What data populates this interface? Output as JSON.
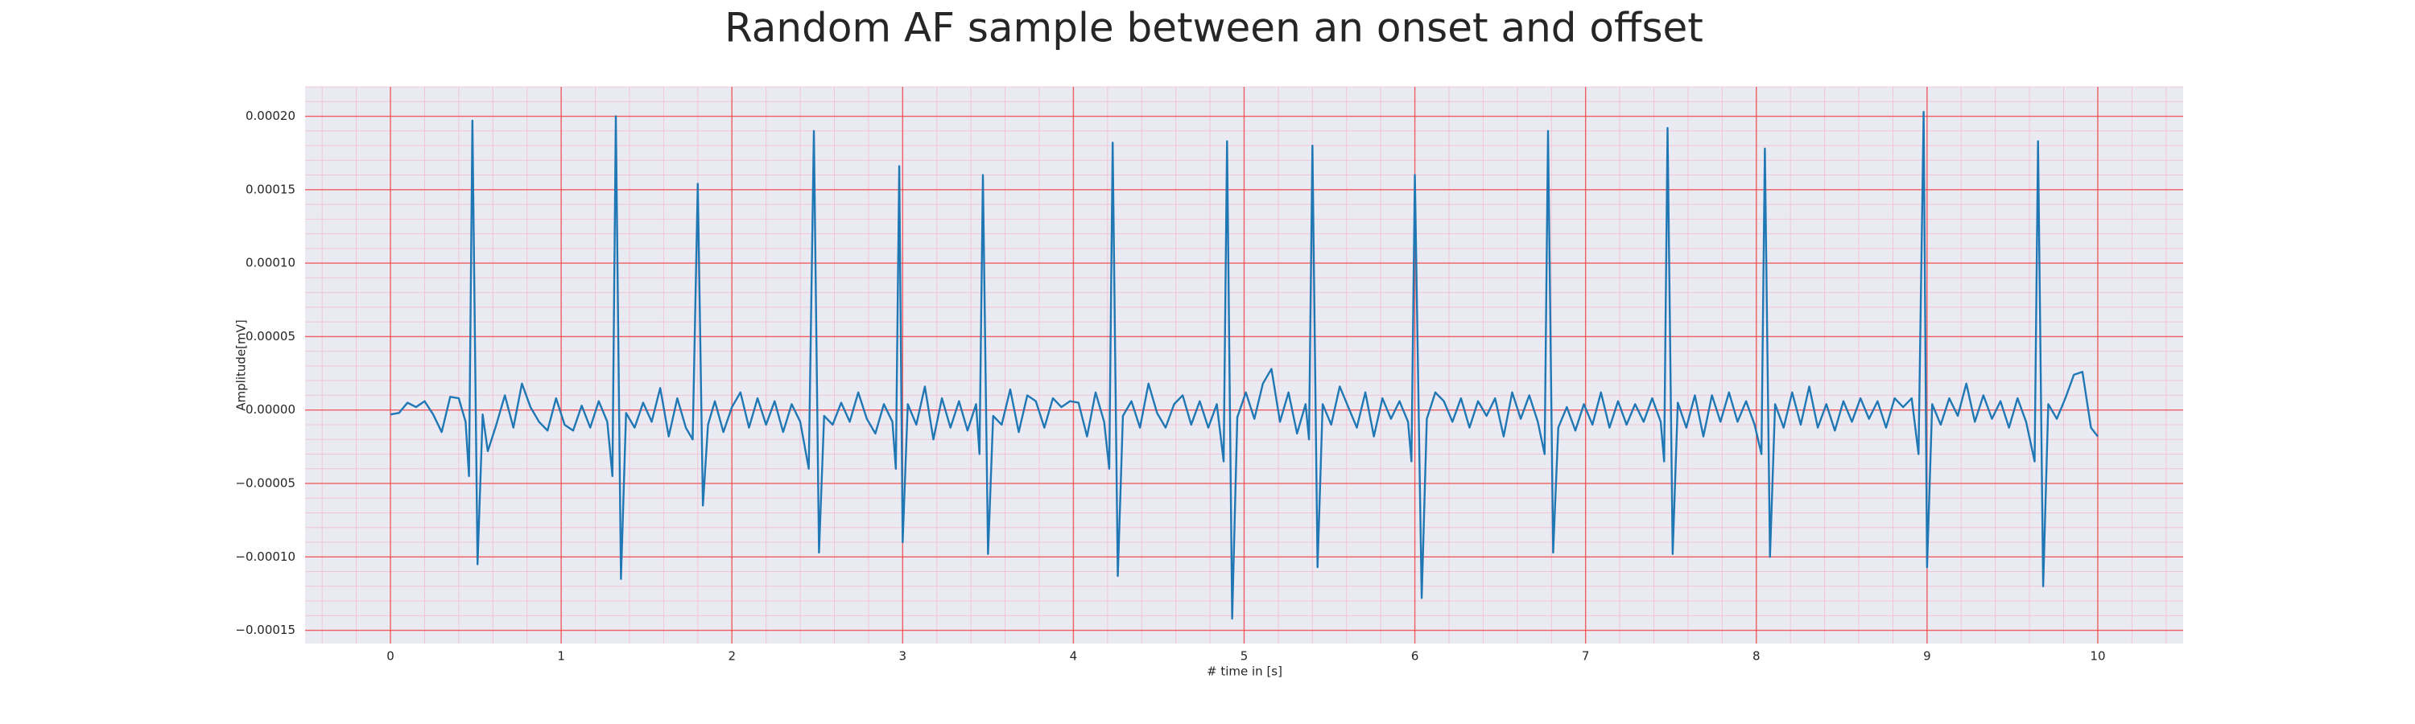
{
  "chart_data": {
    "type": "line",
    "title": "Random AF sample between an onset and offset",
    "xlabel": "# time in [s]",
    "ylabel": "Amplitude[mV]",
    "color": "#1f77b4",
    "grid": true,
    "minor_grid": true,
    "xlim": [
      -0.5,
      10.5
    ],
    "ylim": [
      -0.000159,
      0.00022
    ],
    "xticks": [
      0,
      1,
      2,
      3,
      4,
      5,
      6,
      7,
      8,
      9,
      10
    ],
    "yticks": [
      {
        "value": -0.00015,
        "label": "−0.00015"
      },
      {
        "value": -0.0001,
        "label": "−0.00010"
      },
      {
        "value": -5e-05,
        "label": "−0.00005"
      },
      {
        "value": 0,
        "label": "0.00000"
      },
      {
        "value": 5e-05,
        "label": "0.00005"
      },
      {
        "value": 0.0001,
        "label": "0.00010"
      },
      {
        "value": 0.00015,
        "label": "0.00015"
      },
      {
        "value": 0.0002,
        "label": "0.00020"
      }
    ],
    "x": [
      0.0,
      0.05,
      0.1,
      0.15,
      0.2,
      0.25,
      0.3,
      0.35,
      0.4,
      0.44,
      0.46,
      0.48,
      0.51,
      0.54,
      0.57,
      0.62,
      0.67,
      0.72,
      0.77,
      0.82,
      0.87,
      0.92,
      0.97,
      1.02,
      1.07,
      1.12,
      1.17,
      1.22,
      1.27,
      1.3,
      1.32,
      1.35,
      1.38,
      1.43,
      1.48,
      1.53,
      1.58,
      1.63,
      1.68,
      1.73,
      1.77,
      1.8,
      1.83,
      1.86,
      1.9,
      1.95,
      2.0,
      2.05,
      2.1,
      2.15,
      2.2,
      2.25,
      2.3,
      2.35,
      2.4,
      2.45,
      2.48,
      2.51,
      2.54,
      2.59,
      2.64,
      2.69,
      2.74,
      2.79,
      2.84,
      2.89,
      2.94,
      2.96,
      2.98,
      3.0,
      3.03,
      3.08,
      3.13,
      3.18,
      3.23,
      3.28,
      3.33,
      3.38,
      3.43,
      3.45,
      3.47,
      3.5,
      3.53,
      3.58,
      3.63,
      3.68,
      3.73,
      3.78,
      3.83,
      3.88,
      3.93,
      3.98,
      4.03,
      4.08,
      4.13,
      4.18,
      4.21,
      4.23,
      4.26,
      4.29,
      4.34,
      4.39,
      4.44,
      4.49,
      4.54,
      4.59,
      4.64,
      4.69,
      4.74,
      4.79,
      4.84,
      4.88,
      4.9,
      4.93,
      4.96,
      5.01,
      5.06,
      5.11,
      5.16,
      5.21,
      5.26,
      5.31,
      5.36,
      5.38,
      5.4,
      5.43,
      5.46,
      5.51,
      5.56,
      5.61,
      5.66,
      5.71,
      5.76,
      5.81,
      5.86,
      5.91,
      5.96,
      5.98,
      6.0,
      6.04,
      6.07,
      6.12,
      6.17,
      6.22,
      6.27,
      6.32,
      6.37,
      6.42,
      6.47,
      6.52,
      6.57,
      6.62,
      6.67,
      6.72,
      6.76,
      6.78,
      6.81,
      6.84,
      6.89,
      6.94,
      6.99,
      7.04,
      7.09,
      7.14,
      7.19,
      7.24,
      7.29,
      7.34,
      7.39,
      7.44,
      7.46,
      7.48,
      7.51,
      7.54,
      7.59,
      7.64,
      7.69,
      7.74,
      7.79,
      7.84,
      7.89,
      7.94,
      7.99,
      8.03,
      8.05,
      8.08,
      8.11,
      8.16,
      8.21,
      8.26,
      8.31,
      8.36,
      8.41,
      8.46,
      8.51,
      8.56,
      8.61,
      8.66,
      8.71,
      8.76,
      8.81,
      8.86,
      8.91,
      8.95,
      8.98,
      9.0,
      9.03,
      9.08,
      9.13,
      9.18,
      9.23,
      9.28,
      9.33,
      9.38,
      9.43,
      9.48,
      9.53,
      9.58,
      9.63,
      9.65,
      9.68,
      9.71,
      9.76,
      9.81,
      9.86,
      9.91,
      9.96,
      10.0
    ],
    "values": [
      -3e-06,
      -2e-06,
      5e-06,
      2e-06,
      6e-06,
      -3e-06,
      -1.5e-05,
      9e-06,
      8e-06,
      -8e-06,
      -4.5e-05,
      0.000197,
      -0.000105,
      -3e-06,
      -2.8e-05,
      -1e-05,
      1e-05,
      -1.2e-05,
      1.8e-05,
      2e-06,
      -8e-06,
      -1.4e-05,
      8e-06,
      -1e-05,
      -1.4e-05,
      3e-06,
      -1.2e-05,
      6e-06,
      -8e-06,
      -4.5e-05,
      0.0002,
      -0.000115,
      -2e-06,
      -1.2e-05,
      5e-06,
      -8e-06,
      1.5e-05,
      -1.8e-05,
      8e-06,
      -1.2e-05,
      -2e-05,
      0.000154,
      -6.5e-05,
      -1e-05,
      6e-06,
      -1.5e-05,
      2e-06,
      1.2e-05,
      -1.2e-05,
      8e-06,
      -1e-05,
      6e-06,
      -1.5e-05,
      4e-06,
      -8e-06,
      -4e-05,
      0.00019,
      -9.7e-05,
      -4e-06,
      -1e-05,
      5e-06,
      -8e-06,
      1.2e-05,
      -6e-06,
      -1.6e-05,
      4e-06,
      -8e-06,
      -4e-05,
      0.000166,
      -9e-05,
      4e-06,
      -1e-05,
      1.6e-05,
      -2e-05,
      8e-06,
      -1.2e-05,
      6e-06,
      -1.4e-05,
      4e-06,
      -3e-05,
      0.00016,
      -9.8e-05,
      -4e-06,
      -1e-05,
      1.4e-05,
      -1.5e-05,
      1e-05,
      6e-06,
      -1.2e-05,
      8e-06,
      2e-06,
      6e-06,
      5e-06,
      -1.8e-05,
      1.2e-05,
      -8e-06,
      -4e-05,
      0.000182,
      -0.000113,
      -4e-06,
      6e-06,
      -1.2e-05,
      1.8e-05,
      -2e-06,
      -1.2e-05,
      4e-06,
      1e-05,
      -1e-05,
      6e-06,
      -1.2e-05,
      4e-06,
      -3.5e-05,
      0.000183,
      -0.000142,
      -5e-06,
      1.2e-05,
      -6e-06,
      1.8e-05,
      2.8e-05,
      -8e-06,
      1.2e-05,
      -1.6e-05,
      4e-06,
      -2e-05,
      0.00018,
      -0.000107,
      4e-06,
      -1e-05,
      1.6e-05,
      2e-06,
      -1.2e-05,
      1.2e-05,
      -1.8e-05,
      8e-06,
      -6e-06,
      6e-06,
      -8e-06,
      -3.5e-05,
      0.00016,
      -0.000128,
      -6e-06,
      1.2e-05,
      6e-06,
      -8e-06,
      8e-06,
      -1.2e-05,
      6e-06,
      -4e-06,
      8e-06,
      -1.8e-05,
      1.2e-05,
      -6e-06,
      1e-05,
      -8e-06,
      -3e-05,
      0.00019,
      -9.7e-05,
      -1.2e-05,
      2e-06,
      -1.4e-05,
      4e-06,
      -1e-05,
      1.2e-05,
      -1.2e-05,
      6e-06,
      -1e-05,
      4e-06,
      -8e-06,
      8e-06,
      -8e-06,
      -3.5e-05,
      0.000192,
      -9.8e-05,
      5e-06,
      -1.2e-05,
      1e-05,
      -1.8e-05,
      1e-05,
      -8e-06,
      1.2e-05,
      -8e-06,
      6e-06,
      -1e-05,
      -3e-05,
      0.000178,
      -0.0001,
      4e-06,
      -1.2e-05,
      1.2e-05,
      -1e-05,
      1.6e-05,
      -1.2e-05,
      4e-06,
      -1.4e-05,
      6e-06,
      -8e-06,
      8e-06,
      -6e-06,
      6e-06,
      -1.2e-05,
      8e-06,
      2e-06,
      8e-06,
      -3e-05,
      0.000203,
      -0.000107,
      4e-06,
      -1e-05,
      8e-06,
      -4e-06,
      1.8e-05,
      -8e-06,
      1e-05,
      -6e-06,
      6e-06,
      -1.2e-05,
      8e-06,
      -8e-06,
      -3.5e-05,
      0.000183,
      -0.00012,
      4e-06,
      -6e-06,
      8e-06,
      2.4e-05,
      2.6e-05,
      -1.2e-05,
      -1.8e-05
    ]
  }
}
